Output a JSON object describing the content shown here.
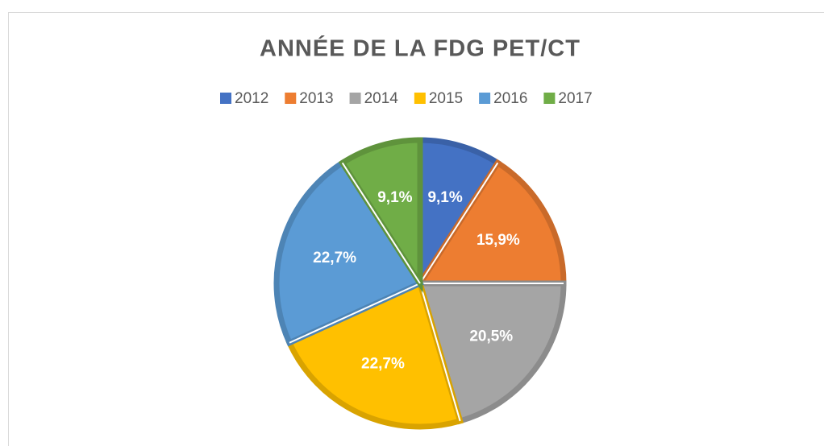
{
  "chart_data": {
    "type": "pie",
    "title": "ANNÉE DE LA FDG PET/CT",
    "categories": [
      "2012",
      "2013",
      "2014",
      "2015",
      "2016",
      "2017"
    ],
    "values": [
      9.1,
      15.9,
      20.5,
      22.7,
      22.7,
      9.1
    ],
    "value_labels": [
      "9,1%",
      "15,9%",
      "20,5%",
      "22,7%",
      "22,7%",
      "9,1%"
    ],
    "colors": [
      "#4472c4",
      "#ed7d31",
      "#a5a5a5",
      "#ffc000",
      "#5b9bd5",
      "#70ad47"
    ],
    "legend": "top"
  }
}
